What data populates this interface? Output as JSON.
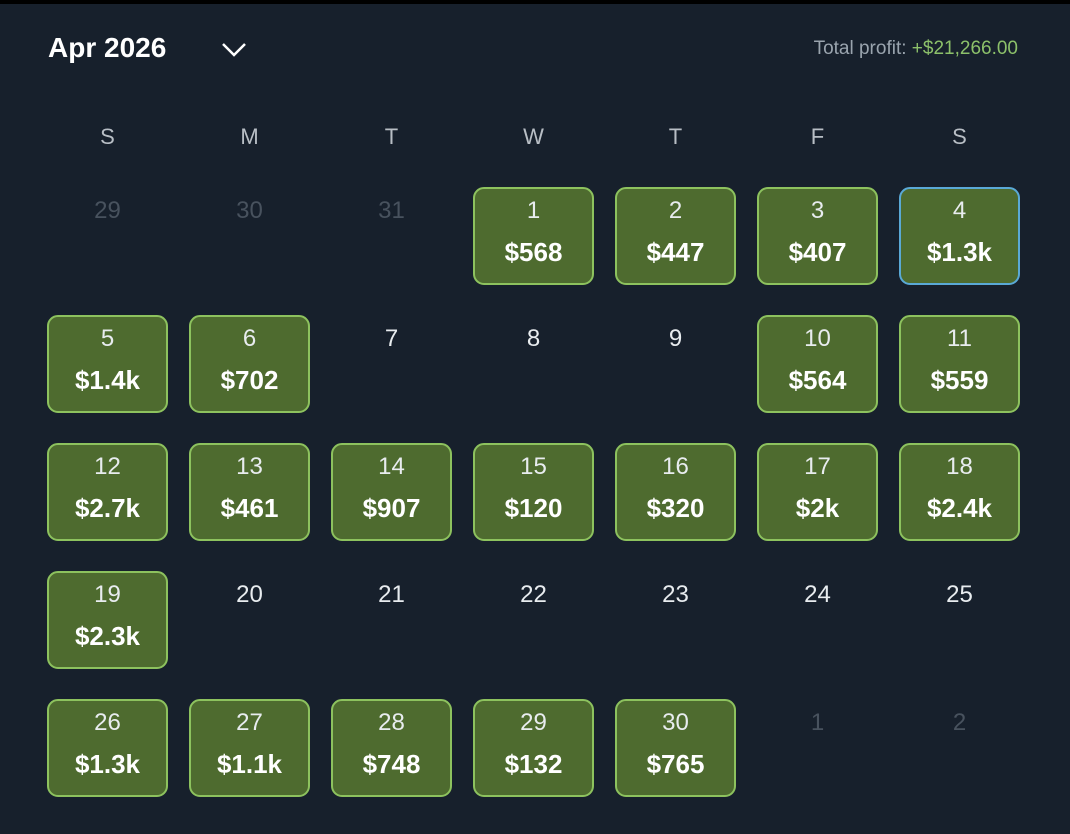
{
  "header": {
    "month": "Apr 2026",
    "total_label": "Total profit:",
    "total_value": "+$21,266.00"
  },
  "weekdays": [
    "S",
    "M",
    "T",
    "W",
    "T",
    "F",
    "S"
  ],
  "leading_days": [
    "29",
    "30",
    "31"
  ],
  "days": [
    {
      "day": "1",
      "profit": "$568"
    },
    {
      "day": "2",
      "profit": "$447"
    },
    {
      "day": "3",
      "profit": "$407"
    },
    {
      "day": "4",
      "profit": "$1.3k",
      "highlighted": true
    },
    {
      "day": "5",
      "profit": "$1.4k"
    },
    {
      "day": "6",
      "profit": "$702"
    },
    {
      "day": "7"
    },
    {
      "day": "8"
    },
    {
      "day": "9"
    },
    {
      "day": "10",
      "profit": "$564"
    },
    {
      "day": "11",
      "profit": "$559"
    },
    {
      "day": "12",
      "profit": "$2.7k"
    },
    {
      "day": "13",
      "profit": "$461"
    },
    {
      "day": "14",
      "profit": "$907"
    },
    {
      "day": "15",
      "profit": "$120"
    },
    {
      "day": "16",
      "profit": "$320"
    },
    {
      "day": "17",
      "profit": "$2k"
    },
    {
      "day": "18",
      "profit": "$2.4k"
    },
    {
      "day": "19",
      "profit": "$2.3k"
    },
    {
      "day": "20"
    },
    {
      "day": "21"
    },
    {
      "day": "22"
    },
    {
      "day": "23"
    },
    {
      "day": "24"
    },
    {
      "day": "25"
    },
    {
      "day": "26",
      "profit": "$1.3k"
    },
    {
      "day": "27",
      "profit": "$1.1k"
    },
    {
      "day": "28",
      "profit": "$748"
    },
    {
      "day": "29",
      "profit": "$132"
    },
    {
      "day": "30",
      "profit": "$765"
    }
  ],
  "trailing_days": [
    "1",
    "2"
  ]
}
